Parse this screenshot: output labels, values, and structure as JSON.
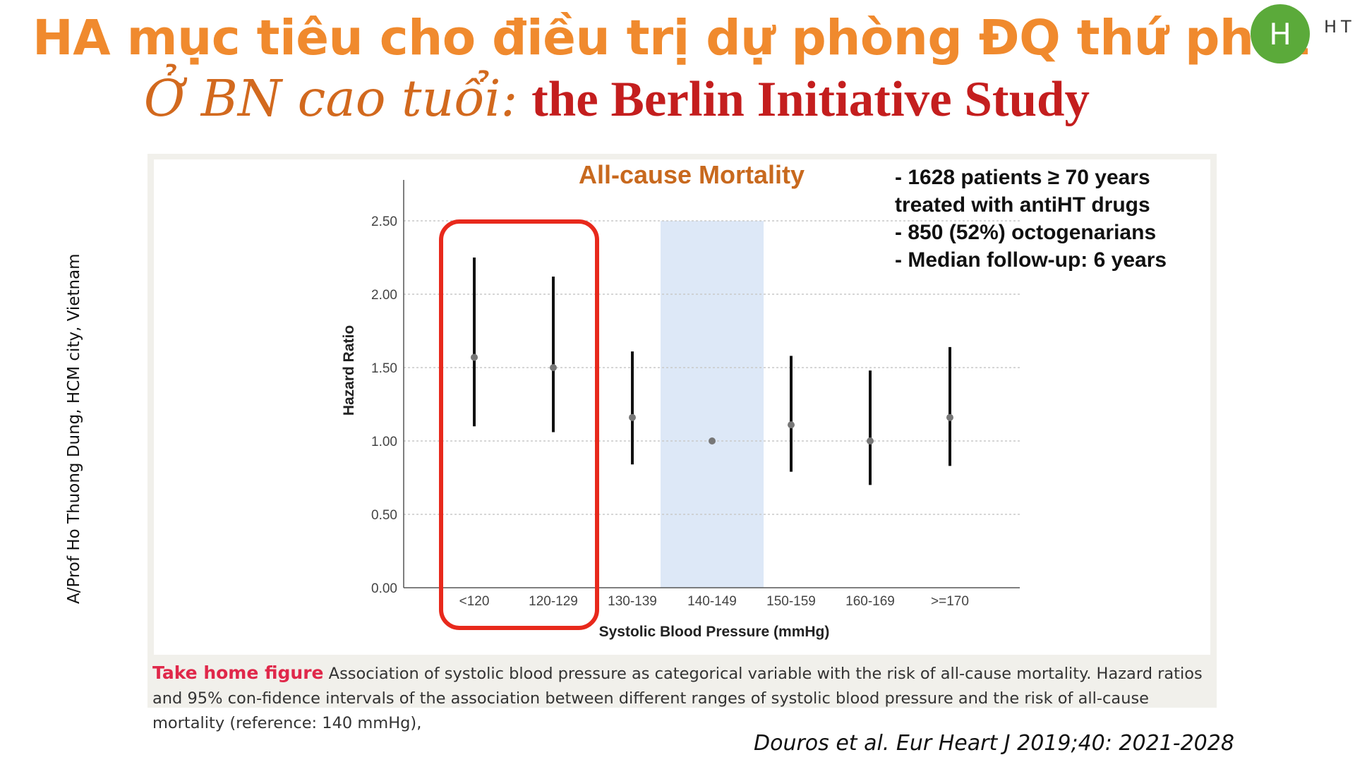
{
  "slide": {
    "title_line1": "HA mục tiêu cho điều trị dự phòng ĐQ thứ phát",
    "title_line2_prefix": "Ở BN cao tuổi:",
    "title_line2_main": "the Berlin Initiative Study",
    "logo_letter": "H",
    "logo_text": "HT",
    "side_text": "A/Prof Ho Thuong Dung, HCM city, Vietnam",
    "info_lines": [
      "- 1628 patients ≥ 70 years",
      "treated with antiHT drugs",
      "- 850 (52%) octogenarians",
      "- Median follow-up: 6 years"
    ],
    "caption_lead": "Take home figure",
    "caption_text": "Association of systolic blood pressure as categorical variable with the risk of all-cause mortality. Hazard ratios and 95% con-fidence intervals of the association between different ranges of systolic blood pressure and the risk of all-cause mortality (reference: 140 mmHg),",
    "citation": "Douros et al. Eur Heart J 2019;40: 2021-2028"
  },
  "colors": {
    "title_orange": "#F08A2E",
    "title_red": "#C41E1E",
    "highlight_box": "#E8291C",
    "reference_band": "#DDE8F7",
    "caption_lead": "#E0284A",
    "logo_green": "#5BAA3A"
  },
  "chart_data": {
    "type": "scatter",
    "title": "All-cause Mortality",
    "xlabel": "Systolic Blood Pressure (mmHg)",
    "ylabel": "Hazard Ratio",
    "ylim": [
      0,
      2.5
    ],
    "yticks": [
      "0.00",
      "0.50",
      "1.00",
      "1.50",
      "2.00",
      "2.50"
    ],
    "ytick_values": [
      0,
      0.5,
      1.0,
      1.5,
      2.0,
      2.5
    ],
    "categories": [
      "<120",
      "120-129",
      "130-139",
      "140-149",
      "150-159",
      "160-169",
      ">=170"
    ],
    "hazard_ratio": [
      1.57,
      1.5,
      1.16,
      1.0,
      1.11,
      1.0,
      1.16
    ],
    "ci_lower": [
      1.1,
      1.06,
      0.84,
      1.0,
      0.79,
      0.7,
      0.83
    ],
    "ci_upper": [
      2.25,
      2.12,
      1.61,
      1.0,
      1.58,
      1.48,
      1.64
    ],
    "reference_category": "140-149",
    "highlighted_categories": [
      "<120",
      "120-129"
    ],
    "grid": "horizontal dashed"
  }
}
